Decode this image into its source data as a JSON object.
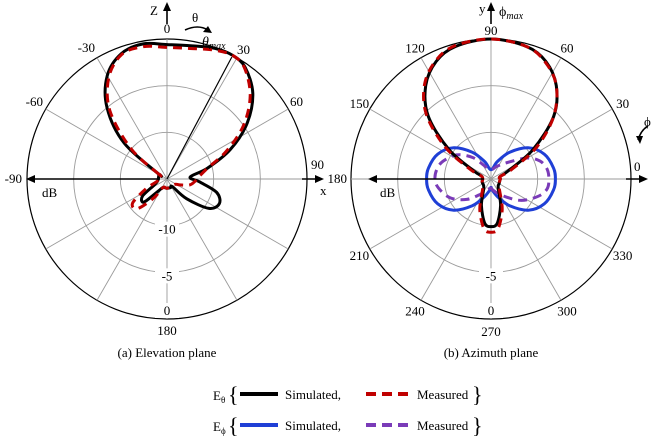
{
  "chart_data": [
    {
      "type": "polar",
      "caption": "(a) Elevation plane",
      "angle_labels": [
        "0",
        "30",
        "60",
        "90",
        "180",
        "-90",
        "-60",
        "-30"
      ],
      "radial_labels": [
        "-10",
        "-5",
        "0"
      ],
      "db_label": "dB",
      "axis_top_label": "Z",
      "axis_right_label": "x",
      "theta_label": "θ",
      "theta_max_label": "θ",
      "theta_max_sub": "max",
      "theta_max_direction_deg": 28,
      "series": [
        {
          "name": "E_theta Simulated",
          "points": [
            [
              -60,
              -14
            ],
            [
              -50,
              -9
            ],
            [
              -40,
              -5
            ],
            [
              -30,
              -2.2
            ],
            [
              -20,
              -0.7
            ],
            [
              -10,
              -0.3
            ],
            [
              0,
              -0.6
            ],
            [
              10,
              -0.5
            ],
            [
              20,
              -0.1
            ],
            [
              28,
              0
            ],
            [
              35,
              -0.4
            ],
            [
              45,
              -2
            ],
            [
              55,
              -4.5
            ],
            [
              65,
              -7.5
            ],
            [
              75,
              -10.5
            ],
            [
              85,
              -12.5
            ],
            [
              95,
              -11.5
            ],
            [
              105,
              -9.5
            ],
            [
              115,
              -8.8
            ],
            [
              125,
              -9.5
            ],
            [
              135,
              -12
            ],
            [
              145,
              -14
            ],
            [
              155,
              -14
            ],
            [
              180,
              -14
            ],
            [
              205,
              -14
            ],
            [
              215,
              -13.5
            ],
            [
              225,
              -11.5
            ],
            [
              235,
              -11.8
            ],
            [
              245,
              -13.5
            ],
            [
              260,
              -14
            ],
            [
              300,
              -14
            ]
          ]
        },
        {
          "name": "E_theta Measured",
          "points": [
            [
              -60,
              -14
            ],
            [
              -50,
              -10
            ],
            [
              -40,
              -5.5
            ],
            [
              -30,
              -2.5
            ],
            [
              -20,
              -0.8
            ],
            [
              -10,
              -0.6
            ],
            [
              0,
              -0.9
            ],
            [
              10,
              -0.8
            ],
            [
              20,
              -0.3
            ],
            [
              28,
              0
            ],
            [
              35,
              -0.5
            ],
            [
              45,
              -2.4
            ],
            [
              55,
              -5
            ],
            [
              65,
              -8
            ],
            [
              75,
              -10.5
            ],
            [
              85,
              -11.5
            ],
            [
              95,
              -12
            ],
            [
              105,
              -12.5
            ],
            [
              115,
              -13.5
            ],
            [
              125,
              -14
            ],
            [
              180,
              -14
            ],
            [
              205,
              -14
            ],
            [
              215,
              -12.5
            ],
            [
              225,
              -10.5
            ],
            [
              235,
              -10.5
            ],
            [
              245,
              -12.5
            ],
            [
              260,
              -14
            ],
            [
              300,
              -14
            ]
          ]
        }
      ]
    },
    {
      "type": "polar",
      "caption": "(b) Azimuth plane",
      "angle_labels": [
        "90",
        "60",
        "30",
        "0",
        "330",
        "300",
        "270",
        "240",
        "210",
        "180",
        "150",
        "120"
      ],
      "radial_labels": [
        "-5",
        "0"
      ],
      "db_label": "dB",
      "axis_top_label": "y",
      "axis_right_label": "",
      "phi_label": "ϕ",
      "phi_max_label": "ϕ",
      "phi_max_sub": "max",
      "series": [
        {
          "name": "E_theta Simulated",
          "points": [
            [
              0,
              -14
            ],
            [
              15,
              -14
            ],
            [
              25,
              -13
            ],
            [
              35,
              -9.5
            ],
            [
              45,
              -5.5
            ],
            [
              55,
              -2.8
            ],
            [
              65,
              -1.1
            ],
            [
              75,
              -0.3
            ],
            [
              90,
              0
            ],
            [
              105,
              -0.3
            ],
            [
              115,
              -1.1
            ],
            [
              125,
              -2.8
            ],
            [
              135,
              -5.5
            ],
            [
              145,
              -9.5
            ],
            [
              155,
              -13
            ],
            [
              165,
              -14
            ],
            [
              200,
              -14
            ],
            [
              230,
              -13.8
            ],
            [
              250,
              -12
            ],
            [
              262,
              -10.2
            ],
            [
              270,
              -9.9
            ],
            [
              278,
              -10.2
            ],
            [
              290,
              -12
            ],
            [
              310,
              -13.8
            ],
            [
              330,
              -14
            ],
            [
              360,
              -14
            ]
          ]
        },
        {
          "name": "E_theta Measured",
          "points": [
            [
              0,
              -14
            ],
            [
              15,
              -14
            ],
            [
              25,
              -12.5
            ],
            [
              35,
              -9
            ],
            [
              45,
              -5.5
            ],
            [
              55,
              -2.8
            ],
            [
              65,
              -1.2
            ],
            [
              75,
              -0.3
            ],
            [
              90,
              0
            ],
            [
              105,
              -0.2
            ],
            [
              115,
              -1
            ],
            [
              125,
              -2.6
            ],
            [
              135,
              -5.2
            ],
            [
              145,
              -9
            ],
            [
              155,
              -12.5
            ],
            [
              165,
              -14
            ],
            [
              200,
              -14
            ],
            [
              230,
              -13.6
            ],
            [
              250,
              -11.5
            ],
            [
              262,
              -9.6
            ],
            [
              270,
              -9.3
            ],
            [
              278,
              -9.6
            ],
            [
              290,
              -11.5
            ],
            [
              310,
              -13.6
            ],
            [
              330,
              -14
            ],
            [
              360,
              -14
            ]
          ]
        },
        {
          "name": "E_phi Simulated",
          "points": [
            [
              -90,
              -14
            ],
            [
              -70,
              -13
            ],
            [
              -55,
              -11.5
            ],
            [
              -40,
              -9.8
            ],
            [
              -25,
              -8.7
            ],
            [
              -10,
              -8.2
            ],
            [
              0,
              -8.1
            ],
            [
              10,
              -8.2
            ],
            [
              25,
              -8.7
            ],
            [
              40,
              -9.8
            ],
            [
              55,
              -11.5
            ],
            [
              70,
              -13
            ],
            [
              90,
              -14
            ],
            [
              110,
              -13
            ],
            [
              125,
              -11.5
            ],
            [
              140,
              -9.8
            ],
            [
              155,
              -8.7
            ],
            [
              170,
              -8.2
            ],
            [
              180,
              -8.1
            ],
            [
              190,
              -8.2
            ],
            [
              205,
              -8.7
            ],
            [
              220,
              -9.8
            ],
            [
              235,
              -11.5
            ],
            [
              250,
              -13
            ],
            [
              270,
              -14
            ]
          ]
        },
        {
          "name": "E_phi Measured",
          "points": [
            [
              -90,
              -14
            ],
            [
              -70,
              -13.5
            ],
            [
              -50,
              -12.5
            ],
            [
              -35,
              -11
            ],
            [
              -20,
              -9.6
            ],
            [
              -10,
              -8.9
            ],
            [
              0,
              -8.8
            ],
            [
              10,
              -8.9
            ],
            [
              20,
              -9.4
            ],
            [
              30,
              -10.5
            ],
            [
              45,
              -12.5
            ],
            [
              65,
              -13.5
            ],
            [
              90,
              -14
            ],
            [
              115,
              -13.5
            ],
            [
              130,
              -12
            ],
            [
              145,
              -10.5
            ],
            [
              160,
              -9.5
            ],
            [
              170,
              -9.1
            ],
            [
              180,
              -9
            ],
            [
              190,
              -9.3
            ],
            [
              205,
              -10.2
            ],
            [
              220,
              -11.6
            ],
            [
              235,
              -13
            ],
            [
              250,
              -13.8
            ],
            [
              270,
              -14
            ]
          ]
        }
      ]
    }
  ],
  "colors": {
    "e_theta_simulated": "#000000",
    "e_theta_measured": "#c00000",
    "e_phi_simulated": "#1f3fd6",
    "e_phi_measured": "#7a3bb8",
    "grid": "#9a9a9a"
  },
  "legend": {
    "row1_prefix": "E",
    "row1_sub": "θ",
    "row2_prefix": "E",
    "row2_sub": "ϕ",
    "simulated": "Simulated,",
    "measured": "Measured"
  }
}
